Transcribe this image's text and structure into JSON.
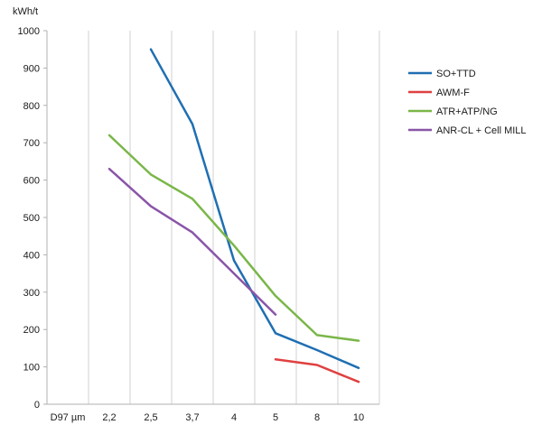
{
  "chart_data": {
    "type": "line",
    "ylabel": "kWh/t",
    "xlabel": "D97 µm",
    "categories": [
      "2,2",
      "2,5",
      "3,7",
      "4",
      "5",
      "8",
      "10"
    ],
    "ylim": [
      0,
      1000
    ],
    "yticks": [
      0,
      100,
      200,
      300,
      400,
      500,
      600,
      700,
      800,
      900,
      1000
    ],
    "grid": "vertical",
    "legend_position": "right",
    "series": [
      {
        "name": "SO+TTD",
        "color": "#1f6fb2",
        "values": [
          null,
          950,
          750,
          385,
          190,
          145,
          97
        ]
      },
      {
        "name": "AWM-F",
        "color": "#e04040",
        "values": [
          null,
          null,
          null,
          null,
          120,
          105,
          60
        ]
      },
      {
        "name": "ATR+ATP/NG",
        "color": "#7ab648",
        "values": [
          720,
          615,
          550,
          425,
          290,
          185,
          170
        ]
      },
      {
        "name": "ANR-CL + Cell MILL",
        "color": "#8a55a8",
        "values": [
          630,
          530,
          460,
          350,
          240,
          null,
          null
        ]
      }
    ]
  }
}
